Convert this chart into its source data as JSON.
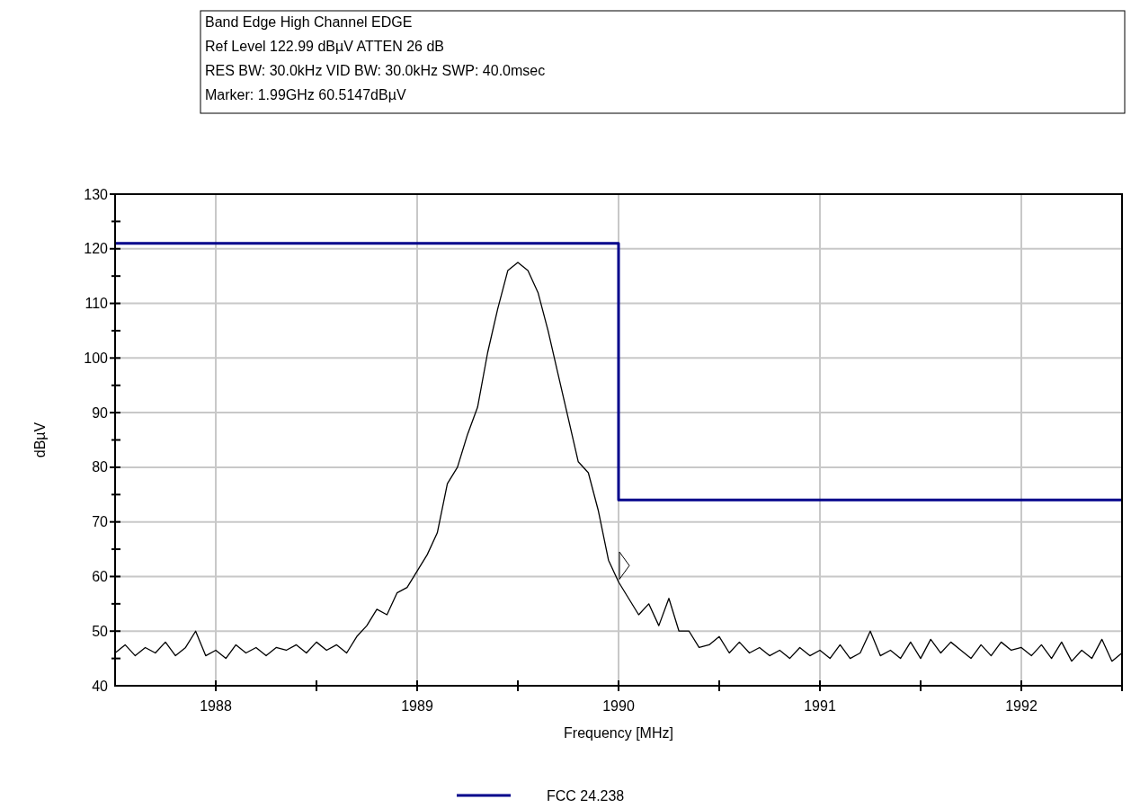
{
  "chart_data": {
    "type": "line",
    "title": "Band Edge High Channel EDGE",
    "annotations": [
      "Ref Level 122.99 dBµV    ATTEN 26 dB",
      "RES BW: 30.0kHz  VID BW: 30.0kHz  SWP: 40.0msec",
      "Marker: 1.99GHz  60.5147dBµV"
    ],
    "xlabel": "Frequency [MHz]",
    "ylabel": "dBµV",
    "xlim": [
      1987.5,
      1992.5
    ],
    "ylim": [
      40,
      130
    ],
    "xticks": [
      {
        "value": 1987.5,
        "label": null
      },
      1988,
      {
        "value": 1988.5,
        "label": null
      },
      1989,
      {
        "value": 1989.5,
        "label": null
      },
      1990,
      {
        "value": 1990.5,
        "label": null
      },
      1991,
      {
        "value": 1991.5,
        "label": null
      },
      1992,
      {
        "value": 1992.5,
        "label": null
      }
    ],
    "yticks": [
      40,
      {
        "value": 45,
        "label": null
      },
      50,
      {
        "value": 55,
        "label": null
      },
      60,
      {
        "value": 65,
        "label": null
      },
      70,
      {
        "value": 75,
        "label": null
      },
      80,
      {
        "value": 85,
        "label": null
      },
      90,
      {
        "value": 95,
        "label": null
      },
      100,
      {
        "value": 105,
        "label": null
      },
      110,
      {
        "value": 115,
        "label": null
      },
      120,
      {
        "value": 125,
        "label": null
      },
      130
    ],
    "grid": true,
    "legend": "bottom",
    "marker": "none",
    "line_style": "solid",
    "series": [
      {
        "type": "line",
        "color": "#000000",
        "x": [
          1987.5,
          1987.55,
          1987.6,
          1987.65,
          1987.7,
          1987.75,
          1987.8,
          1987.85,
          1987.9,
          1987.95,
          1988,
          1988.05,
          1988.1,
          1988.15,
          1988.2,
          1988.25,
          1988.3,
          1988.35,
          1988.4,
          1988.45,
          1988.5,
          1988.55,
          1988.6,
          1988.65,
          1988.7,
          1988.75,
          1988.8,
          1988.85,
          1988.9,
          1988.95,
          1989,
          1989.05,
          1989.1,
          1989.15,
          1989.2,
          1989.25,
          1989.3,
          1989.35,
          1989.4,
          1989.45,
          1989.5,
          1989.55,
          1989.6,
          1989.65,
          1989.7,
          1989.75,
          1989.8,
          1989.85,
          1989.9,
          1989.95,
          1990,
          1990.05,
          1990.1,
          1990.15,
          1990.2,
          1990.25,
          1990.3,
          1990.35,
          1990.4,
          1990.45,
          1990.5,
          1990.55,
          1990.6,
          1990.65,
          1990.7,
          1990.75,
          1990.8,
          1990.85,
          1990.9,
          1990.95,
          1991,
          1991.05,
          1991.1,
          1991.15,
          1991.2,
          1991.25,
          1991.3,
          1991.35,
          1991.4,
          1991.45,
          1991.5,
          1991.55,
          1991.6,
          1991.65,
          1991.7,
          1991.75,
          1991.8,
          1991.85,
          1991.9,
          1991.95,
          1992,
          1992.05,
          1992.1,
          1992.15,
          1992.2,
          1992.25,
          1992.3,
          1992.35,
          1992.4,
          1992.45,
          1992.5
        ],
        "values": [
          46,
          47.5,
          45.5,
          47,
          46,
          48,
          45.5,
          47,
          50,
          45.5,
          46.5,
          45,
          47.5,
          46,
          47,
          45.5,
          47,
          46.5,
          47.5,
          46,
          48,
          46.5,
          47.5,
          46,
          49,
          51,
          54,
          53,
          57,
          58,
          61,
          64,
          68,
          77,
          80,
          86,
          91,
          101,
          109,
          116,
          117.5,
          116,
          112,
          105,
          97,
          89,
          81,
          79,
          72,
          63,
          59,
          56,
          53,
          55,
          51,
          56,
          50,
          50,
          47,
          47.5,
          49,
          46,
          48,
          46,
          47,
          45.5,
          46.5,
          45,
          47,
          45.5,
          46.5,
          45,
          47.5,
          45,
          46,
          50,
          45.5,
          46.5,
          45,
          48,
          45,
          48.5,
          46,
          48,
          46.5,
          45,
          47.5,
          45.5,
          48,
          46.5,
          47,
          45.5,
          47.5,
          45,
          48,
          44.5,
          46.5,
          45,
          48.5,
          44.5,
          46
        ]
      },
      {
        "type": "step",
        "name": "FCC 24.238",
        "color": "#00008b",
        "x": [
          1987.5,
          1990,
          1992.5
        ],
        "values": [
          121,
          74,
          74
        ]
      }
    ]
  }
}
